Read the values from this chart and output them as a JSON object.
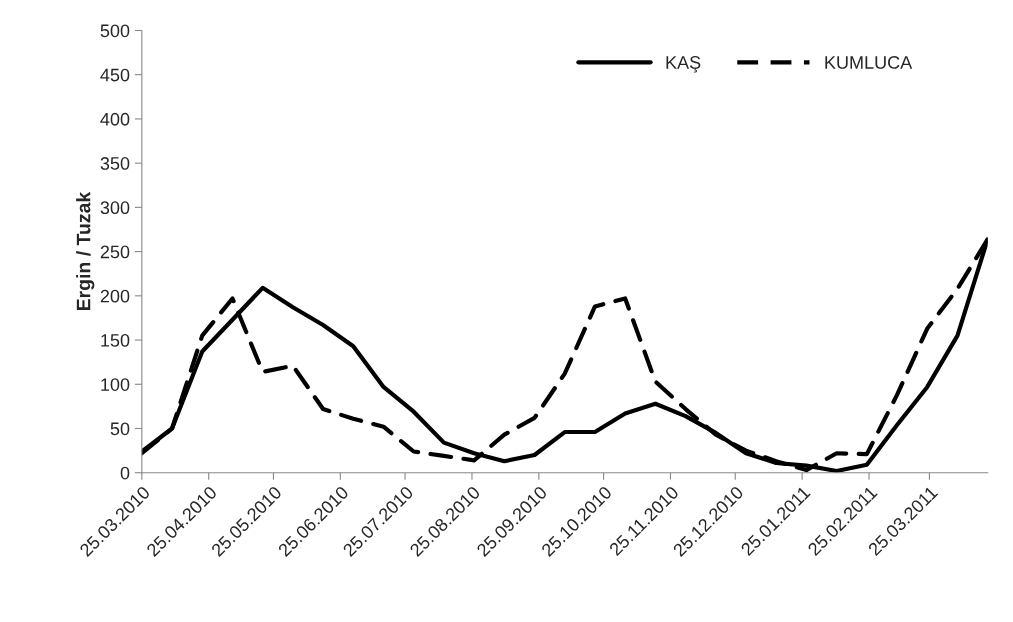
{
  "chart_data": {
    "type": "line",
    "ylabel": "Ergin / Tuzak",
    "x": [
      "2010-03-25",
      "2010-04-08",
      "2010-04-22",
      "2010-05-06",
      "2010-05-20",
      "2010-06-03",
      "2010-06-17",
      "2010-07-01",
      "2010-07-15",
      "2010-07-29",
      "2010-08-12",
      "2010-08-26",
      "2010-09-09",
      "2010-09-23",
      "2010-10-07",
      "2010-10-21",
      "2010-11-04",
      "2010-11-18",
      "2010-12-02",
      "2010-12-16",
      "2010-12-30",
      "2011-01-13",
      "2011-01-27",
      "2011-02-10",
      "2011-02-24",
      "2011-03-10",
      "2011-03-24",
      "2011-04-07",
      "2011-04-21"
    ],
    "series": [
      {
        "name": "KAŞ",
        "color": "#000000",
        "line_style": "solid",
        "values": [
          24,
          50,
          137,
          173,
          209,
          187,
          167,
          143,
          97,
          69,
          34,
          22,
          13,
          20,
          46,
          46,
          67,
          78,
          64,
          45,
          22,
          11,
          8,
          2,
          9,
          54,
          97,
          155,
          264
        ]
      },
      {
        "name": "KUMLUCA",
        "color": "#000000",
        "line_style": "dashed",
        "values": [
          22,
          50,
          155,
          197,
          114,
          121,
          72,
          61,
          52,
          24,
          19,
          14,
          43,
          62,
          112,
          188,
          197,
          103,
          72,
          43,
          25,
          13,
          3,
          22,
          21,
          88,
          163,
          208,
          264
        ]
      }
    ],
    "xlim": [
      "2010-03-25",
      "2011-04-21"
    ],
    "xticks": [
      {
        "value": "2010-03-25",
        "label": "25.03.2010"
      },
      {
        "value": "2010-04-25",
        "label": "25.04.2010"
      },
      {
        "value": "2010-05-25",
        "label": "25.05.2010"
      },
      {
        "value": "2010-06-25",
        "label": "25.06.2010"
      },
      {
        "value": "2010-07-25",
        "label": "25.07.2010"
      },
      {
        "value": "2010-08-25",
        "label": "25.08.2010"
      },
      {
        "value": "2010-09-25",
        "label": "25.09.2010"
      },
      {
        "value": "2010-10-25",
        "label": "25.10.2010"
      },
      {
        "value": "2010-11-25",
        "label": "25.11.2010"
      },
      {
        "value": "2010-12-25",
        "label": "25.12.2010"
      },
      {
        "value": "2011-01-25",
        "label": "25.01.2011"
      },
      {
        "value": "2011-02-25",
        "label": "25.02.2011"
      },
      {
        "value": "2011-03-25",
        "label": "25.03.2011"
      }
    ],
    "ylim": [
      0,
      500
    ],
    "yticks": [
      0,
      50,
      100,
      150,
      200,
      250,
      300,
      350,
      400,
      450,
      500
    ],
    "grid": false,
    "legend": "top right"
  }
}
